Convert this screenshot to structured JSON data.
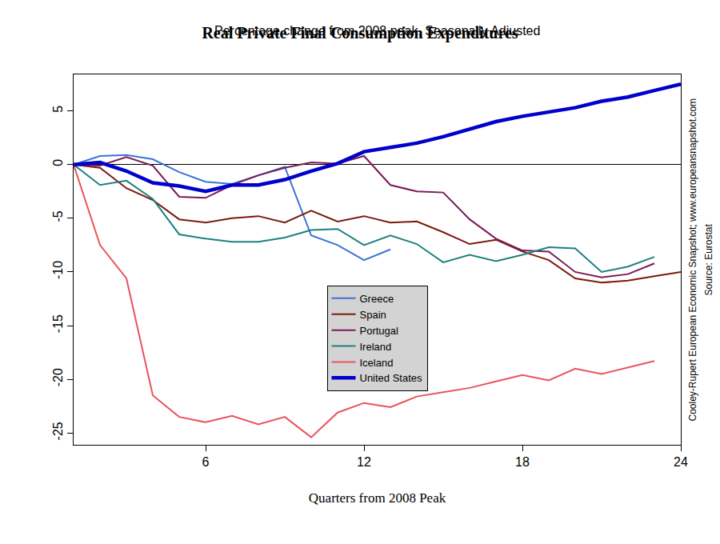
{
  "chart_data": {
    "type": "line",
    "title": "Real Private Final Consumption Expenditures",
    "subtitle": "Percentage change from 2008 peak, Seasonally Adjusted",
    "x_label": "Quarters from 2008 Peak",
    "annotations": [
      "Cooley-Rupert European Economic Snapshot; www.europeansnapshot.com",
      "Source: Eurostat"
    ],
    "x": [
      1,
      2,
      3,
      4,
      5,
      6,
      7,
      8,
      9,
      10,
      11,
      12,
      13,
      14,
      15,
      16,
      17,
      18,
      19,
      20,
      21,
      22,
      23,
      24
    ],
    "xlim": [
      1,
      24
    ],
    "xticks": [
      6,
      12,
      18,
      24
    ],
    "ylim": [
      -26.1,
      8.4
    ],
    "yticks": [
      -25,
      -20,
      -15,
      -10,
      -5,
      0,
      5
    ],
    "grid": false,
    "legend": "lower center",
    "series": [
      {
        "name": "Greece",
        "color": "#3a73d6",
        "line_style": "solid",
        "values": [
          0,
          0.8,
          0.9,
          0.5,
          -0.7,
          -1.6,
          -1.8,
          -1.0,
          -0.2,
          -6.6,
          -7.5,
          -8.9,
          -7.9,
          null,
          null,
          null,
          null,
          null,
          null,
          null,
          null,
          null,
          null,
          null
        ]
      },
      {
        "name": "Spain",
        "color": "#7b1a0c",
        "line_style": "solid",
        "values": [
          0,
          -0.3,
          -2.2,
          -3.3,
          -5.1,
          -5.4,
          -5.0,
          -4.8,
          -5.4,
          -4.3,
          -5.3,
          -4.8,
          -5.4,
          -5.3,
          -6.3,
          -7.4,
          -7.0,
          -8.1,
          -8.9,
          -10.6,
          -11.0,
          -10.8,
          -10.4,
          -10.0
        ]
      },
      {
        "name": "Portugal",
        "color": "#7a1a5a",
        "line_style": "solid",
        "values": [
          0,
          -0.1,
          0.7,
          -0.1,
          -3.0,
          -3.1,
          -1.9,
          -1.0,
          -0.3,
          0.2,
          0.1,
          0.8,
          -1.9,
          -2.5,
          -2.6,
          -5.1,
          -6.9,
          -8.0,
          -8.1,
          -10.0,
          -10.5,
          -10.2,
          -9.2,
          null
        ]
      },
      {
        "name": "Ireland",
        "color": "#1e8080",
        "line_style": "solid",
        "values": [
          0,
          -1.9,
          -1.5,
          -3.2,
          -6.5,
          -6.9,
          -7.2,
          -7.2,
          -6.8,
          -6.1,
          -6.0,
          -7.5,
          -6.6,
          -7.4,
          -9.1,
          -8.4,
          -9.0,
          -8.4,
          -7.7,
          -7.8,
          -10.0,
          -9.5,
          -8.6,
          null
        ]
      },
      {
        "name": "Iceland",
        "color": "#e8545c",
        "line_style": "solid",
        "values": [
          0,
          -7.5,
          -10.6,
          -21.5,
          -23.5,
          -24.0,
          -23.4,
          -24.2,
          -23.5,
          -25.4,
          -23.1,
          -22.2,
          -22.6,
          -21.6,
          -21.2,
          -20.8,
          -20.2,
          -19.6,
          -20.1,
          -19.0,
          -19.5,
          -18.9,
          -18.3,
          null
        ]
      },
      {
        "name": "United States",
        "color": "#0000cc",
        "line_style": "thick",
        "values": [
          0,
          0.2,
          -0.6,
          -1.7,
          -2.0,
          -2.5,
          -1.9,
          -1.9,
          -1.4,
          -0.6,
          0.1,
          1.2,
          1.6,
          2.0,
          2.6,
          3.3,
          4.0,
          4.5,
          4.9,
          5.3,
          5.9,
          6.3,
          6.9,
          7.5
        ]
      }
    ]
  }
}
